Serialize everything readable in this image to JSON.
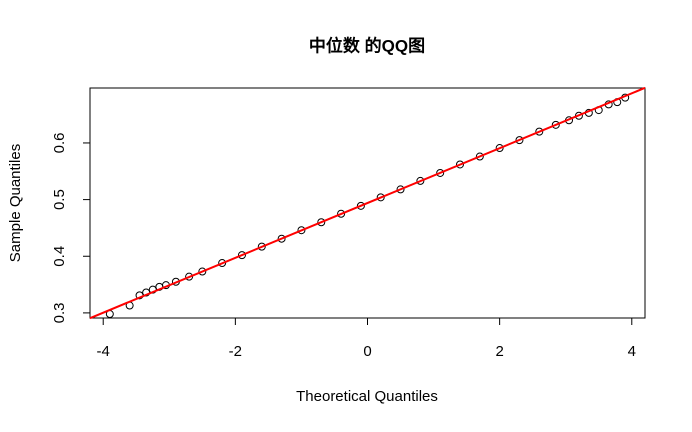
{
  "chart_data": {
    "type": "scatter",
    "title": "中位数 的QQ图",
    "x_label": "Theoretical Quantiles",
    "y_label": "Sample Quantiles",
    "x": [
      -3.9,
      -3.6,
      -3.45,
      -3.35,
      -3.25,
      -3.15,
      -3.05,
      -2.9,
      -2.7,
      -2.5,
      -2.2,
      -1.9,
      -1.6,
      -1.3,
      -1.0,
      -0.7,
      -0.4,
      -0.1,
      0.2,
      0.5,
      0.8,
      1.1,
      1.4,
      1.7,
      2.0,
      2.3,
      2.6,
      2.85,
      3.05,
      3.2,
      3.35,
      3.5,
      3.65,
      3.78,
      3.9
    ],
    "y": [
      0.298,
      0.313,
      0.331,
      0.336,
      0.341,
      0.346,
      0.349,
      0.355,
      0.364,
      0.373,
      0.388,
      0.402,
      0.417,
      0.431,
      0.446,
      0.46,
      0.475,
      0.489,
      0.504,
      0.518,
      0.533,
      0.547,
      0.562,
      0.576,
      0.591,
      0.605,
      0.62,
      0.632,
      0.64,
      0.648,
      0.653,
      0.658,
      0.668,
      0.672,
      0.68
    ],
    "color": "#000000",
    "line": {
      "intercept": 0.494,
      "slope": 0.0484,
      "color": "#ff0000"
    },
    "xlim": [
      -4.2,
      4.2
    ],
    "ylim": [
      0.291,
      0.697
    ],
    "xticks": [
      -4,
      -2,
      0,
      2,
      4
    ],
    "yticks": [
      0.3,
      0.4,
      0.5,
      0.6
    ]
  }
}
